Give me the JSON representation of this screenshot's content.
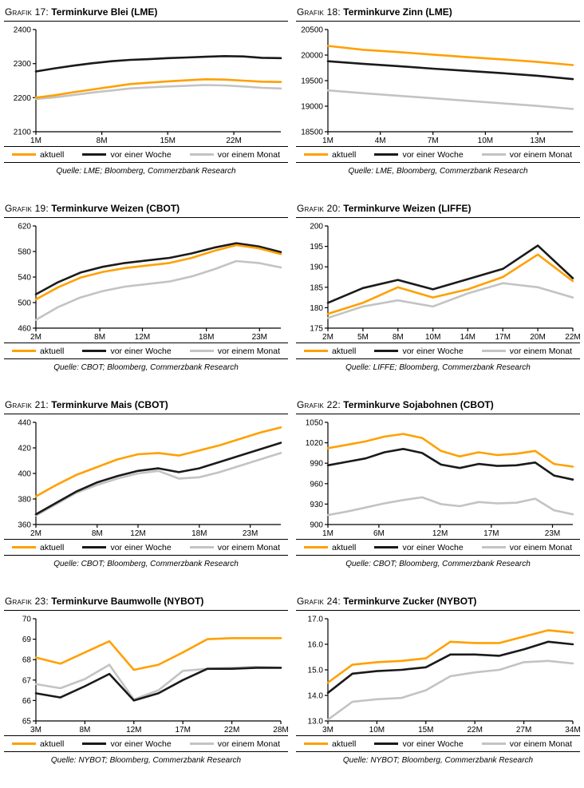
{
  "page": {
    "background": "#FFFFFF"
  },
  "colors": {
    "aktuell": "#FFA000",
    "vor_einer_woche": "#1A1A1A",
    "vor_einem_monat": "#C3C3C3",
    "axis": "#000000"
  },
  "legend_position": "bottom",
  "chart_data": [
    {
      "id": "grafik-17",
      "type": "line",
      "title_prefix": "Grafik 17:",
      "title": "Terminkurve Blei (LME)",
      "source": "Quelle: LME; Bloomberg, Commerzbank Research",
      "ylim": [
        2100,
        2400
      ],
      "yticks": [
        {
          "v": 2100,
          "label": "2100"
        },
        {
          "v": 2200,
          "label": "2200"
        },
        {
          "v": 2300,
          "label": "2300"
        },
        {
          "v": 2400,
          "label": "2400"
        }
      ],
      "xticks": [
        {
          "f": 0,
          "label": "1M"
        },
        {
          "f": 0.269,
          "label": "8M"
        },
        {
          "f": 0.538,
          "label": "15M"
        },
        {
          "f": 0.808,
          "label": "22M"
        }
      ],
      "series": [
        {
          "name": "aktuell",
          "color": "#FFA000",
          "values": [
            2200,
            2207,
            2216,
            2224,
            2232,
            2240,
            2244,
            2248,
            2251,
            2254,
            2253,
            2250,
            2247,
            2246
          ]
        },
        {
          "name": "vor einer Woche",
          "color": "#1A1A1A",
          "values": [
            2277,
            2286,
            2294,
            2301,
            2307,
            2311,
            2313,
            2316,
            2318,
            2320,
            2322,
            2321,
            2317,
            2316
          ]
        },
        {
          "name": "vor einem Monat",
          "color": "#C3C3C3",
          "values": [
            2196,
            2201,
            2208,
            2215,
            2221,
            2227,
            2230,
            2233,
            2235,
            2237,
            2236,
            2233,
            2229,
            2227
          ]
        }
      ]
    },
    {
      "id": "grafik-18",
      "type": "line",
      "title_prefix": "Grafik 18:",
      "title": "Terminkurve Zinn (LME)",
      "source": "Quelle: LME, Bloomberg, Commerzbank Research",
      "ylim": [
        18500,
        20500
      ],
      "yticks": [
        {
          "v": 18500,
          "label": "18500"
        },
        {
          "v": 19000,
          "label": "19000"
        },
        {
          "v": 19500,
          "label": "19500"
        },
        {
          "v": 20000,
          "label": "20000"
        },
        {
          "v": 20500,
          "label": "20500"
        }
      ],
      "xticks": [
        {
          "f": 0,
          "label": "1M"
        },
        {
          "f": 0.214,
          "label": "4M"
        },
        {
          "f": 0.429,
          "label": "7M"
        },
        {
          "f": 0.643,
          "label": "10M"
        },
        {
          "f": 0.857,
          "label": "13M"
        }
      ],
      "series": [
        {
          "name": "aktuell",
          "color": "#FFA000",
          "values": [
            20180,
            20105,
            20060,
            20010,
            19960,
            19915,
            19865,
            19805
          ]
        },
        {
          "name": "vor einer Woche",
          "color": "#1A1A1A",
          "values": [
            19880,
            19830,
            19785,
            19735,
            19690,
            19645,
            19595,
            19530
          ]
        },
        {
          "name": "vor einem Monat",
          "color": "#C3C3C3",
          "values": [
            19310,
            19255,
            19205,
            19155,
            19105,
            19055,
            19005,
            18945
          ]
        }
      ]
    },
    {
      "id": "grafik-19",
      "type": "line",
      "title_prefix": "Grafik 19:",
      "title": "Terminkurve Weizen (CBOT)",
      "source": "Quelle: CBOT; Bloomberg, Commerzbank Research",
      "ylim": [
        460,
        620
      ],
      "yticks": [
        {
          "v": 460,
          "label": "460"
        },
        {
          "v": 500,
          "label": "500"
        },
        {
          "v": 540,
          "label": "540"
        },
        {
          "v": 580,
          "label": "580"
        },
        {
          "v": 620,
          "label": "620"
        }
      ],
      "xticks": [
        {
          "f": 0,
          "label": "2M"
        },
        {
          "f": 0.261,
          "label": "8M"
        },
        {
          "f": 0.435,
          "label": "12M"
        },
        {
          "f": 0.696,
          "label": "18M"
        },
        {
          "f": 0.913,
          "label": "23M"
        }
      ],
      "series": [
        {
          "name": "aktuell",
          "color": "#FFA000",
          "values": [
            505,
            524,
            539,
            548,
            554,
            558,
            562,
            570,
            581,
            590,
            585,
            576
          ]
        },
        {
          "name": "vor einer Woche",
          "color": "#1A1A1A",
          "values": [
            513,
            532,
            547,
            556,
            562,
            566,
            570,
            577,
            586,
            593,
            588,
            579
          ]
        },
        {
          "name": "vor einem Monat",
          "color": "#C3C3C3",
          "values": [
            473,
            493,
            508,
            518,
            525,
            529,
            533,
            541,
            552,
            565,
            562,
            555
          ]
        }
      ]
    },
    {
      "id": "grafik-20",
      "type": "line",
      "title_prefix": "Grafik 20:",
      "title": "Terminkurve Weizen (LIFFE)",
      "source": "Quelle: LIFFE; Bloomberg, Commerzbank Research",
      "ylim": [
        175,
        200
      ],
      "yticks": [
        {
          "v": 175,
          "label": "175"
        },
        {
          "v": 180,
          "label": "180"
        },
        {
          "v": 185,
          "label": "185"
        },
        {
          "v": 190,
          "label": "190"
        },
        {
          "v": 195,
          "label": "195"
        },
        {
          "v": 200,
          "label": "200"
        }
      ],
      "xticks": [
        {
          "f": 0,
          "label": "2M"
        },
        {
          "f": 0.143,
          "label": "5M"
        },
        {
          "f": 0.286,
          "label": "8M"
        },
        {
          "f": 0.429,
          "label": "10M"
        },
        {
          "f": 0.571,
          "label": "14M"
        },
        {
          "f": 0.714,
          "label": "17M"
        },
        {
          "f": 0.857,
          "label": "20M"
        },
        {
          "f": 1,
          "label": "22M"
        }
      ],
      "series": [
        {
          "name": "aktuell",
          "color": "#FFA000",
          "values": [
            178.5,
            181.2,
            185.0,
            182.5,
            184.5,
            187.5,
            193.0,
            186.5
          ]
        },
        {
          "name": "vor einer Woche",
          "color": "#1A1A1A",
          "values": [
            181.2,
            184.8,
            186.8,
            184.5,
            187.0,
            189.5,
            195.2,
            187.2
          ]
        },
        {
          "name": "vor einem Monat",
          "color": "#C3C3C3",
          "values": [
            177.5,
            180.3,
            181.8,
            180.3,
            183.5,
            186.0,
            185.0,
            182.5
          ]
        }
      ]
    },
    {
      "id": "grafik-21",
      "type": "line",
      "title_prefix": "Grafik 21:",
      "title": "Terminkurve Mais (CBOT)",
      "source": "Quelle: CBOT; Bloomberg, Commerzbank Research",
      "ylim": [
        360,
        440
      ],
      "yticks": [
        {
          "v": 360,
          "label": "360"
        },
        {
          "v": 380,
          "label": "380"
        },
        {
          "v": 400,
          "label": "400"
        },
        {
          "v": 420,
          "label": "420"
        },
        {
          "v": 440,
          "label": "440"
        }
      ],
      "xticks": [
        {
          "f": 0,
          "label": "2M"
        },
        {
          "f": 0.25,
          "label": "8M"
        },
        {
          "f": 0.417,
          "label": "12M"
        },
        {
          "f": 0.667,
          "label": "18M"
        },
        {
          "f": 0.875,
          "label": "23M"
        }
      ],
      "series": [
        {
          "name": "aktuell",
          "color": "#FFA000",
          "values": [
            382,
            391,
            399,
            405,
            411,
            415,
            416,
            414,
            418,
            422,
            427,
            432,
            436
          ]
        },
        {
          "name": "vor einer Woche",
          "color": "#1A1A1A",
          "values": [
            368,
            377,
            386,
            393,
            398,
            402,
            404,
            401,
            404,
            409,
            414,
            419,
            424
          ]
        },
        {
          "name": "vor einem Monat",
          "color": "#C3C3C3",
          "values": [
            367,
            376,
            385,
            391,
            396,
            400,
            402,
            396,
            397,
            401,
            406,
            411,
            416
          ]
        }
      ]
    },
    {
      "id": "grafik-22",
      "type": "line",
      "title_prefix": "Grafik 22:",
      "title": "Terminkurve Sojabohnen (CBOT)",
      "source": "Quelle: CBOT; Bloomberg, Commerzbank Research",
      "ylim": [
        900,
        1050
      ],
      "yticks": [
        {
          "v": 900,
          "label": "900"
        },
        {
          "v": 930,
          "label": "930"
        },
        {
          "v": 960,
          "label": "960"
        },
        {
          "v": 990,
          "label": "990"
        },
        {
          "v": 1020,
          "label": "1020"
        },
        {
          "v": 1050,
          "label": "1050"
        }
      ],
      "xticks": [
        {
          "f": 0,
          "label": "1M"
        },
        {
          "f": 0.208,
          "label": "6M"
        },
        {
          "f": 0.458,
          "label": "12M"
        },
        {
          "f": 0.667,
          "label": "17M"
        },
        {
          "f": 0.917,
          "label": "23M"
        }
      ],
      "series": [
        {
          "name": "aktuell",
          "color": "#FFA000",
          "values": [
            1012,
            1017,
            1022,
            1029,
            1033,
            1027,
            1008,
            1000,
            1006,
            1002,
            1004,
            1008,
            989,
            985
          ]
        },
        {
          "name": "vor einer Woche",
          "color": "#1A1A1A",
          "values": [
            987,
            992,
            997,
            1006,
            1011,
            1005,
            988,
            983,
            989,
            986,
            987,
            991,
            972,
            966
          ]
        },
        {
          "name": "vor einem Monat",
          "color": "#C3C3C3",
          "values": [
            914,
            919,
            925,
            931,
            936,
            940,
            930,
            927,
            933,
            931,
            932,
            938,
            921,
            915
          ]
        }
      ]
    },
    {
      "id": "grafik-23",
      "type": "line",
      "title_prefix": "Grafik 23:",
      "title": "Terminkurve Baumwolle (NYBOT)",
      "source": "Quelle: NYBOT; Bloomberg, Commerzbank Research",
      "ylim": [
        65,
        70
      ],
      "yticks": [
        {
          "v": 65,
          "label": "65"
        },
        {
          "v": 66,
          "label": "66"
        },
        {
          "v": 67,
          "label": "67"
        },
        {
          "v": 68,
          "label": "68"
        },
        {
          "v": 69,
          "label": "69"
        },
        {
          "v": 70,
          "label": "70"
        }
      ],
      "xticks": [
        {
          "f": 0,
          "label": "3M"
        },
        {
          "f": 0.2,
          "label": "8M"
        },
        {
          "f": 0.4,
          "label": "12M"
        },
        {
          "f": 0.6,
          "label": "17M"
        },
        {
          "f": 0.8,
          "label": "22M"
        },
        {
          "f": 1,
          "label": "28M"
        }
      ],
      "series": [
        {
          "name": "aktuell",
          "color": "#FFA000",
          "values": [
            68.1,
            67.8,
            68.35,
            68.9,
            67.5,
            67.75,
            68.35,
            69.0,
            69.05,
            69.05,
            69.05
          ]
        },
        {
          "name": "vor einer Woche",
          "color": "#1A1A1A",
          "values": [
            66.35,
            66.15,
            66.7,
            67.3,
            66.0,
            66.35,
            67.0,
            67.55,
            67.55,
            67.6,
            67.6
          ]
        },
        {
          "name": "vor einem Monat",
          "color": "#C3C3C3",
          "values": [
            66.8,
            66.6,
            67.05,
            67.75,
            66.05,
            66.5,
            67.45,
            67.55,
            67.6,
            67.65,
            67.6
          ]
        }
      ]
    },
    {
      "id": "grafik-24",
      "type": "line",
      "title_prefix": "Grafik 24:",
      "title": "Terminkurve Zucker (NYBOT)",
      "source": "Quelle: NYBOT; Bloomberg, Commerzbank Research",
      "ylim": [
        13.0,
        17.0
      ],
      "yticks": [
        {
          "v": 13,
          "label": "13.0"
        },
        {
          "v": 14,
          "label": "14.0"
        },
        {
          "v": 15,
          "label": "15.0"
        },
        {
          "v": 16,
          "label": "16.0"
        },
        {
          "v": 17,
          "label": "17.0"
        }
      ],
      "xticks": [
        {
          "f": 0,
          "label": "3M"
        },
        {
          "f": 0.2,
          "label": "10M"
        },
        {
          "f": 0.4,
          "label": "15M"
        },
        {
          "f": 0.6,
          "label": "22M"
        },
        {
          "f": 0.8,
          "label": "27M"
        },
        {
          "f": 1,
          "label": "34M"
        }
      ],
      "series": [
        {
          "name": "aktuell",
          "color": "#FFA000",
          "values": [
            14.5,
            15.2,
            15.3,
            15.35,
            15.45,
            16.1,
            16.05,
            16.05,
            16.3,
            16.55,
            16.45
          ]
        },
        {
          "name": "vor einer Woche",
          "color": "#1A1A1A",
          "values": [
            14.1,
            14.85,
            14.95,
            15.0,
            15.1,
            15.6,
            15.6,
            15.55,
            15.8,
            16.1,
            16.0
          ]
        },
        {
          "name": "vor einem Monat",
          "color": "#C3C3C3",
          "values": [
            13.05,
            13.75,
            13.85,
            13.9,
            14.2,
            14.75,
            14.9,
            15.0,
            15.3,
            15.35,
            15.25
          ]
        }
      ]
    }
  ]
}
